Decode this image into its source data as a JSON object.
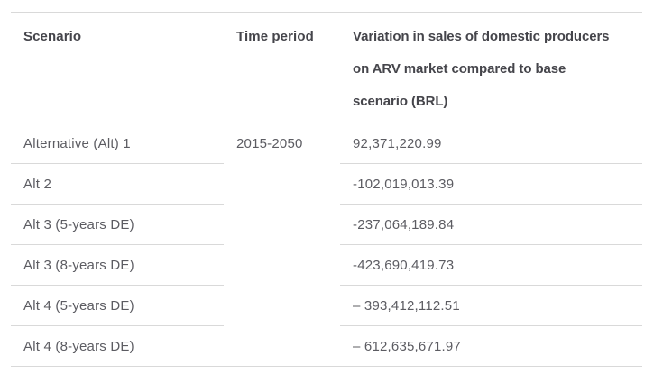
{
  "table": {
    "header": {
      "scenario": "Scenario",
      "time_period": "Time period",
      "variation_lines": [
        "Variation in sales of domestic producers",
        "on ARV market compared to base",
        "scenario (BRL)"
      ]
    },
    "time_period_value": "2015-2050",
    "rows": [
      {
        "scenario": "Alternative (Alt) 1",
        "variation": "92,371,220.99"
      },
      {
        "scenario": "Alt 2",
        "variation": "-102,019,013.39"
      },
      {
        "scenario": "Alt 3 (5-years DE)",
        "variation": "-237,064,189.84"
      },
      {
        "scenario": "Alt 3 (8-years DE)",
        "variation": "-423,690,419.73"
      },
      {
        "scenario": "Alt 4 (5-years DE)",
        "variation": "– 393,412,112.51"
      },
      {
        "scenario": "Alt 4 (8-years DE)",
        "variation": "– 612,635,671.97"
      }
    ],
    "colors": {
      "header_text": "#45454b",
      "body_text": "#5c5c62",
      "separator": "#d9d9d9",
      "background": "#ffffff"
    }
  },
  "chart_data": {
    "type": "table",
    "title": "",
    "columns": [
      "Scenario",
      "Time period",
      "Variation in sales of domestic producers on ARV market compared to base scenario (BRL)"
    ],
    "rows": [
      [
        "Alternative (Alt) 1",
        "2015-2050",
        "92,371,220.99"
      ],
      [
        "Alt 2",
        "",
        "-102,019,013.39"
      ],
      [
        "Alt 3 (5-years DE)",
        "",
        "-237,064,189.84"
      ],
      [
        "Alt 3 (8-years DE)",
        "",
        "-423,690,419.73"
      ],
      [
        "Alt 4 (5-years DE)",
        "",
        "– 393,412,112.51"
      ],
      [
        "Alt 4 (8-years DE)",
        "",
        "– 612,635,671.97"
      ]
    ],
    "variation_values_brl": [
      92371220.99,
      -102019013.39,
      -237064189.84,
      -423690419.73,
      -393412112.51,
      -612635671.97
    ],
    "time_period_shared": "2015-2050",
    "layout": {
      "grid": "horizontal-separators-only",
      "time_period_cell_rowspan": 6
    }
  }
}
